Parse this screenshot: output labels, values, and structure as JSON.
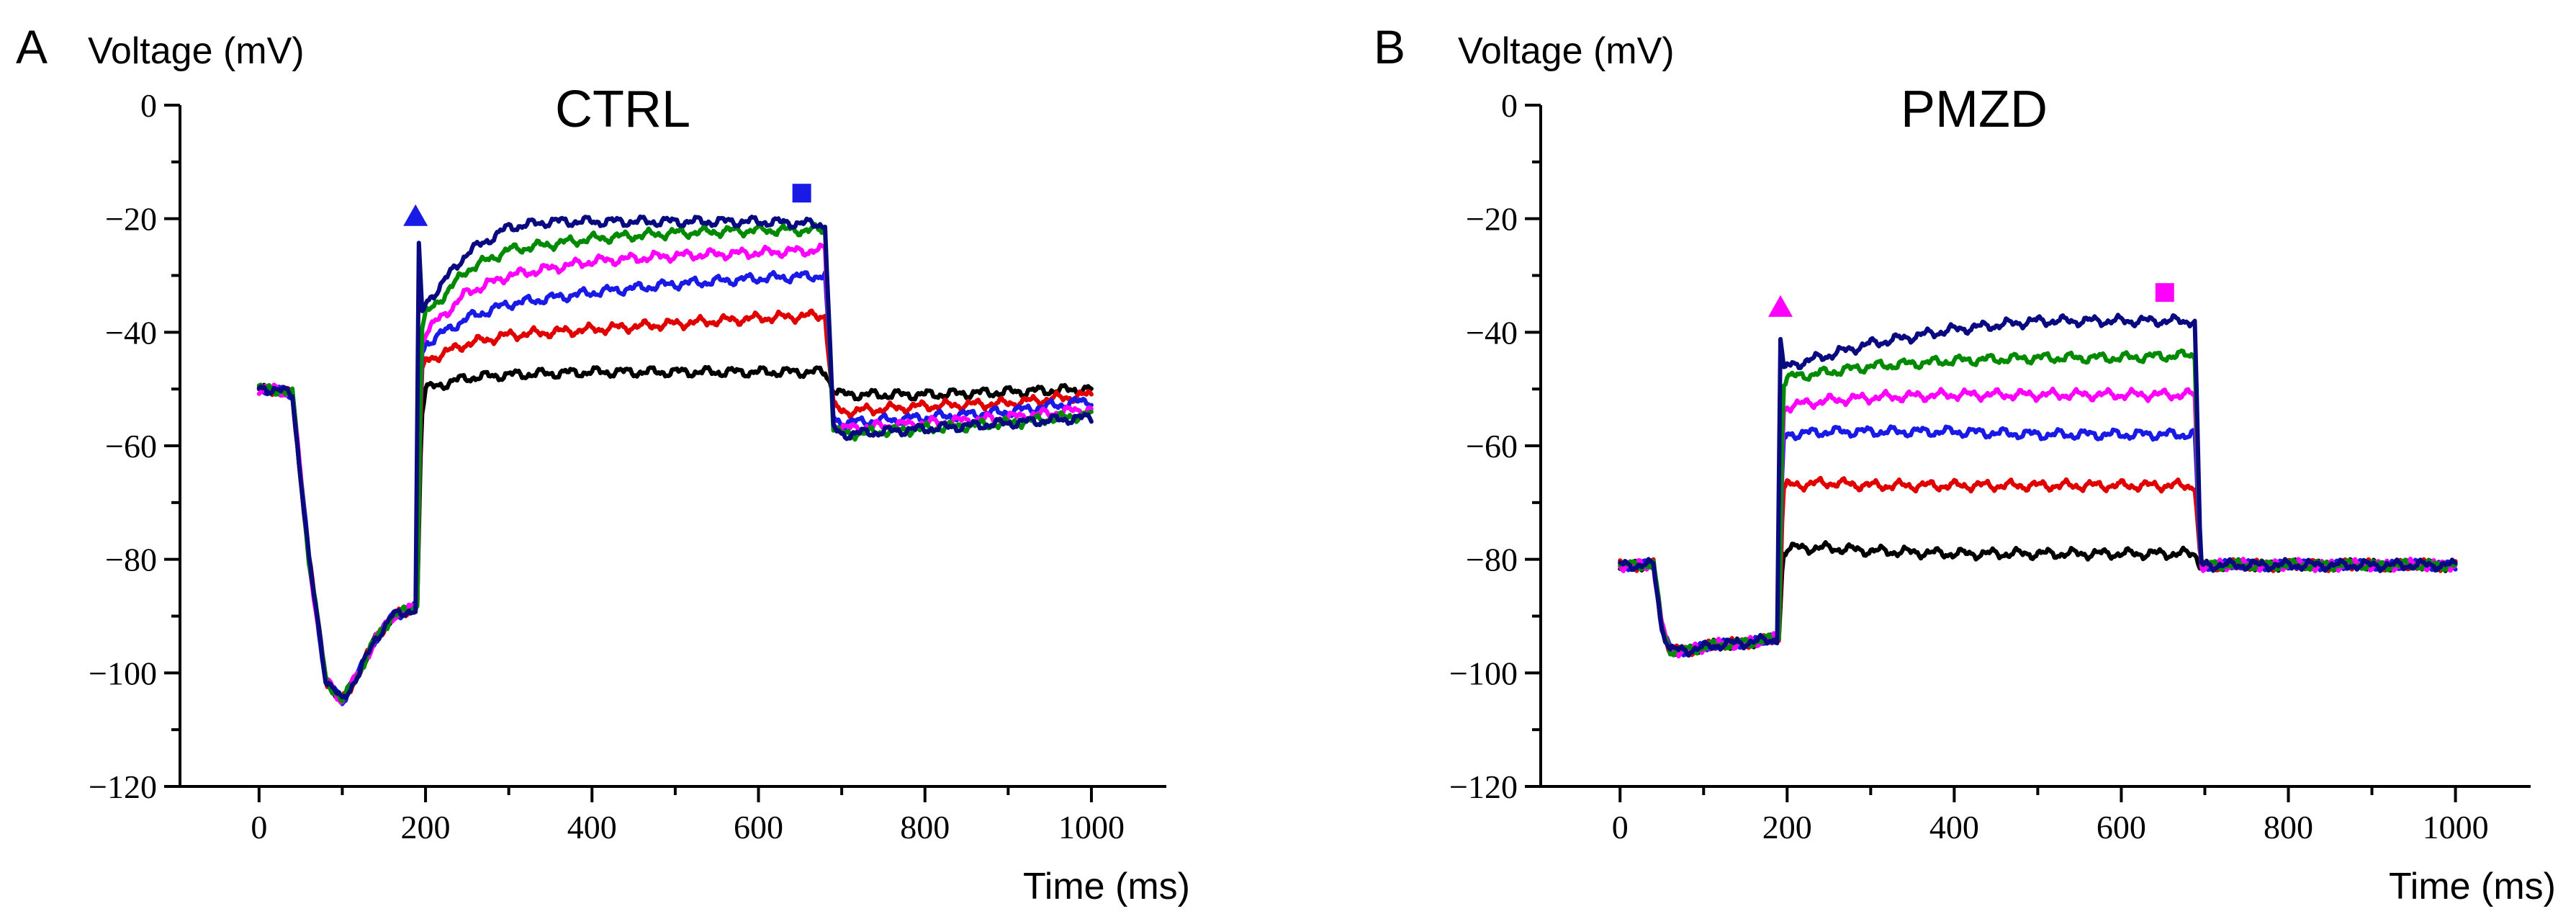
{
  "chart_data": [
    {
      "type": "line",
      "panel_label": "A",
      "title": "CTRL",
      "xlabel": "Time (ms)",
      "ylabel": "Voltage (mV)",
      "xlim": [
        -95,
        1090
      ],
      "ylim": [
        -120,
        0
      ],
      "xticks": [
        0,
        200,
        400,
        600,
        800,
        1000
      ],
      "xtick_labels": [
        "0",
        "200",
        "400",
        "600",
        "800",
        "1000"
      ],
      "yticks": [
        0,
        -20,
        -40,
        -60,
        -80,
        -100,
        -120
      ],
      "ytick_labels": [
        "0",
        "−20",
        "−40",
        "−60",
        "−80",
        "−100",
        "−120"
      ],
      "markers": [
        {
          "shape": "triangle",
          "color": "#1a1ae6",
          "x": 188,
          "y": -19.5
        },
        {
          "shape": "square",
          "color": "#1a1ae6",
          "x": 652,
          "y": -15.5
        }
      ],
      "series": [
        {
          "name": "black",
          "color": "#000000",
          "x": [
            0,
            20,
            40,
            60,
            80,
            100,
            120,
            140,
            160,
            180,
            190,
            195,
            200,
            250,
            300,
            400,
            500,
            600,
            680,
            690,
            700,
            800,
            900,
            1000
          ],
          "y": [
            -50,
            -50,
            -51,
            -80,
            -101,
            -105,
            -100,
            -94,
            -90,
            -89,
            -88,
            -55,
            -50,
            -48,
            -47.5,
            -47,
            -47,
            -47,
            -47,
            -50,
            -51,
            -51,
            -50.5,
            -50
          ]
        },
        {
          "name": "red",
          "color": "#e00000",
          "x": [
            0,
            20,
            40,
            60,
            80,
            100,
            120,
            140,
            160,
            180,
            190,
            195,
            200,
            250,
            300,
            400,
            500,
            600,
            680,
            690,
            700,
            800,
            900,
            1000
          ],
          "y": [
            -50,
            -50,
            -51,
            -80,
            -101,
            -105,
            -100,
            -94,
            -90,
            -89,
            -88,
            -48,
            -45,
            -42,
            -40.5,
            -39.5,
            -38.5,
            -37.5,
            -37,
            -53,
            -54,
            -53,
            -52.5,
            -51
          ]
        },
        {
          "name": "blue",
          "color": "#1a1ae6",
          "x": [
            0,
            20,
            40,
            60,
            80,
            100,
            120,
            140,
            160,
            180,
            190,
            195,
            200,
            250,
            300,
            400,
            500,
            600,
            680,
            690,
            700,
            800,
            900,
            1000
          ],
          "y": [
            -50,
            -50,
            -51,
            -80,
            -101,
            -105,
            -100,
            -94,
            -90,
            -89,
            -88,
            -44,
            -42,
            -37.5,
            -35,
            -33,
            -31.5,
            -30.5,
            -30,
            -55,
            -56,
            -55,
            -54,
            -52
          ]
        },
        {
          "name": "magenta",
          "color": "#ff00ff",
          "x": [
            0,
            20,
            40,
            60,
            80,
            100,
            120,
            140,
            160,
            180,
            190,
            195,
            200,
            250,
            300,
            400,
            500,
            600,
            680,
            690,
            700,
            800,
            900,
            1000
          ],
          "y": [
            -50,
            -50,
            -51,
            -80,
            -101,
            -105,
            -100,
            -94,
            -90,
            -89,
            -88,
            -42,
            -40,
            -33,
            -30,
            -27.5,
            -26.5,
            -26,
            -25.5,
            -56,
            -57,
            -56,
            -55,
            -53.5
          ]
        },
        {
          "name": "green",
          "color": "#008a00",
          "x": [
            0,
            20,
            40,
            60,
            80,
            100,
            120,
            140,
            160,
            180,
            190,
            195,
            200,
            250,
            300,
            400,
            500,
            600,
            680,
            690,
            700,
            800,
            900,
            1000
          ],
          "y": [
            -50,
            -50,
            -51,
            -80,
            -101,
            -105,
            -100,
            -94,
            -90,
            -89,
            -88,
            -40,
            -37,
            -29,
            -25.5,
            -23.5,
            -22.5,
            -22,
            -22,
            -57,
            -58,
            -57,
            -56,
            -54.5
          ]
        },
        {
          "name": "navy",
          "color": "#0a0a80",
          "x": [
            0,
            20,
            40,
            60,
            80,
            100,
            120,
            140,
            160,
            180,
            188,
            192,
            196,
            200,
            250,
            300,
            350,
            400,
            500,
            600,
            680,
            690,
            700,
            800,
            900,
            1000
          ],
          "y": [
            -50,
            -50,
            -51,
            -80,
            -101,
            -105,
            -100,
            -94,
            -90,
            -89,
            -89,
            -25,
            -37,
            -35,
            -26,
            -21.5,
            -20.5,
            -20.5,
            -20.5,
            -20.5,
            -21,
            -57,
            -58,
            -57,
            -56,
            -55
          ]
        }
      ]
    },
    {
      "type": "line",
      "panel_label": "B",
      "title": "PMZD",
      "xlabel": "Time (ms)",
      "ylabel": "Voltage (mV)",
      "xlim": [
        -95,
        1090
      ],
      "ylim": [
        -120,
        0
      ],
      "xticks": [
        0,
        200,
        400,
        600,
        800,
        1000
      ],
      "xtick_labels": [
        "0",
        "200",
        "400",
        "600",
        "800",
        "1000"
      ],
      "yticks": [
        0,
        -20,
        -40,
        -60,
        -80,
        -100,
        -120
      ],
      "ytick_labels": [
        "0",
        "−20",
        "−40",
        "−60",
        "−80",
        "−100",
        "−120"
      ],
      "markers": [
        {
          "shape": "triangle",
          "color": "#ff00ff",
          "x": 192,
          "y": -35.5
        },
        {
          "shape": "square",
          "color": "#ff00ff",
          "x": 652,
          "y": -33
        }
      ],
      "series": [
        {
          "name": "black",
          "color": "#000000",
          "x": [
            0,
            30,
            40,
            50,
            60,
            80,
            120,
            160,
            190,
            195,
            200,
            250,
            300,
            400,
            500,
            600,
            688,
            695,
            700,
            800,
            900,
            1000
          ],
          "y": [
            -81,
            -81,
            -81,
            -92,
            -96,
            -96,
            -95,
            -94.5,
            -94,
            -79,
            -78,
            -78,
            -78.5,
            -79,
            -79,
            -79,
            -79,
            -81,
            -81,
            -81,
            -81,
            -81
          ]
        },
        {
          "name": "red",
          "color": "#e00000",
          "x": [
            0,
            30,
            40,
            50,
            60,
            80,
            120,
            160,
            190,
            195,
            200,
            250,
            300,
            400,
            500,
            600,
            688,
            695,
            700,
            800,
            900,
            1000
          ],
          "y": [
            -81,
            -81,
            -81,
            -92,
            -96,
            -96,
            -95,
            -94.5,
            -94,
            -68,
            -67,
            -66.5,
            -67,
            -67,
            -67,
            -67,
            -67,
            -81,
            -81,
            -81,
            -81,
            -81
          ]
        },
        {
          "name": "blue",
          "color": "#1a1ae6",
          "x": [
            0,
            30,
            40,
            50,
            60,
            80,
            120,
            160,
            190,
            195,
            200,
            250,
            300,
            400,
            500,
            600,
            688,
            695,
            700,
            800,
            900,
            1000
          ],
          "y": [
            -81,
            -81,
            -81,
            -92,
            -96,
            -96,
            -95,
            -94.5,
            -94,
            -59,
            -58,
            -57.5,
            -57.5,
            -57.5,
            -58,
            -58,
            -58,
            -81,
            -81,
            -81,
            -81,
            -81
          ]
        },
        {
          "name": "magenta",
          "color": "#ff00ff",
          "x": [
            0,
            30,
            40,
            50,
            60,
            80,
            120,
            160,
            190,
            195,
            200,
            250,
            300,
            400,
            500,
            600,
            688,
            695,
            700,
            800,
            900,
            1000
          ],
          "y": [
            -81,
            -81,
            -81,
            -92,
            -96,
            -96,
            -95,
            -94.5,
            -94,
            -54,
            -53,
            -52,
            -51.5,
            -51,
            -51,
            -51,
            -51,
            -81,
            -81,
            -81,
            -81,
            -81
          ]
        },
        {
          "name": "green",
          "color": "#008a00",
          "x": [
            0,
            30,
            40,
            50,
            60,
            80,
            120,
            160,
            190,
            195,
            200,
            250,
            300,
            400,
            500,
            600,
            688,
            695,
            700,
            800,
            900,
            1000
          ],
          "y": [
            -81,
            -81,
            -81,
            -92,
            -96,
            -96,
            -95,
            -94.5,
            -94,
            -49,
            -48,
            -47,
            -46,
            -45,
            -44.5,
            -44.5,
            -44,
            -81,
            -81,
            -81,
            -81,
            -81
          ]
        },
        {
          "name": "navy",
          "color": "#0a0a80",
          "x": [
            0,
            30,
            40,
            50,
            60,
            80,
            120,
            160,
            188,
            192,
            196,
            200,
            250,
            300,
            400,
            500,
            600,
            688,
            695,
            700,
            800,
            900,
            1000
          ],
          "y": [
            -81,
            -81,
            -81,
            -92,
            -96,
            -96,
            -95,
            -94.5,
            -94,
            -41,
            -47,
            -46,
            -44,
            -42,
            -39.5,
            -38,
            -38,
            -38,
            -81,
            -81,
            -81,
            -81,
            -81
          ]
        }
      ]
    }
  ]
}
